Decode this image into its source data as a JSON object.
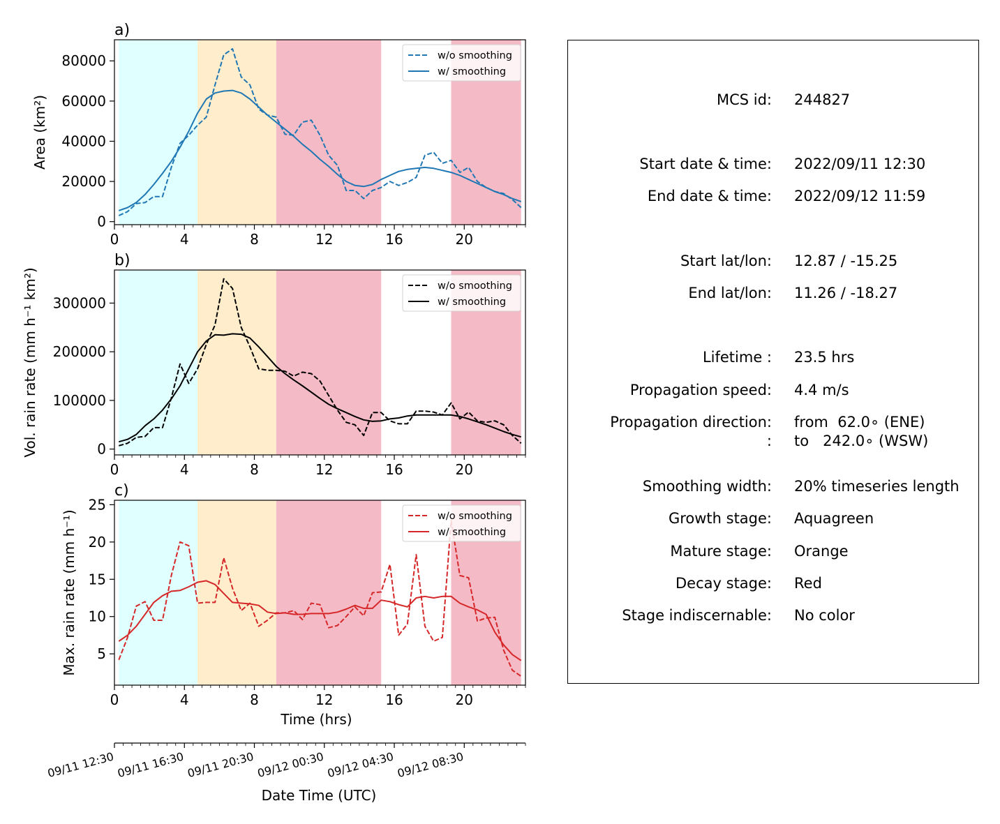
{
  "chart_data": [
    {
      "type": "line",
      "panel_label": "a)",
      "xlabel": "",
      "ylabel": "Area  (km²)",
      "xlim": [
        0,
        23.5
      ],
      "ylim": [
        -1500,
        90500
      ],
      "xticks": [
        0,
        4,
        8,
        12,
        16,
        20
      ],
      "yticks": [
        0,
        20000,
        40000,
        60000,
        80000
      ],
      "legend_position": "top-right",
      "series": [
        {
          "name": "w/o smoothing",
          "style": "dashed",
          "color": "#1f77b4",
          "x": [
            0.25,
            0.75,
            1.25,
            1.75,
            2.25,
            2.75,
            3.25,
            3.75,
            4.25,
            4.75,
            5.25,
            5.75,
            6.25,
            6.75,
            7.25,
            7.75,
            8.25,
            8.75,
            9.25,
            9.75,
            10.25,
            10.75,
            11.25,
            11.75,
            12.25,
            12.75,
            13.25,
            13.75,
            14.25,
            14.75,
            15.25,
            15.75,
            16.25,
            16.75,
            17.25,
            17.75,
            18.25,
            18.75,
            19.25,
            19.75,
            20.25,
            20.75,
            21.25,
            21.75,
            22.25,
            22.75,
            23.25
          ],
          "y": [
            3000,
            5000,
            9000,
            9500,
            12500,
            12500,
            27000,
            39000,
            43000,
            48000,
            52000,
            68000,
            83000,
            86000,
            72000,
            68000,
            56000,
            53000,
            52000,
            43500,
            43000,
            49500,
            50500,
            43000,
            33000,
            28000,
            15500,
            15500,
            11500,
            15500,
            17000,
            20000,
            18000,
            19500,
            22000,
            33000,
            34500,
            29000,
            30500,
            24500,
            27000,
            20000,
            17000,
            15000,
            14000,
            11000,
            7000
          ]
        },
        {
          "name": "w/ smoothing",
          "style": "solid",
          "color": "#1f77b4",
          "x": [
            0.25,
            0.75,
            1.25,
            1.75,
            2.25,
            2.75,
            3.25,
            3.75,
            4.25,
            4.75,
            5.25,
            5.75,
            6.25,
            6.75,
            7.25,
            7.75,
            8.25,
            8.75,
            9.25,
            9.75,
            10.25,
            10.75,
            11.25,
            11.75,
            12.25,
            12.75,
            13.25,
            13.75,
            14.25,
            14.75,
            15.25,
            15.75,
            16.25,
            16.75,
            17.25,
            17.75,
            18.25,
            18.75,
            19.25,
            19.75,
            20.25,
            20.75,
            21.25,
            21.75,
            22.25,
            22.75,
            23.25
          ],
          "y": [
            5500,
            7000,
            9500,
            13500,
            18500,
            24000,
            30000,
            37000,
            45000,
            54000,
            61000,
            64000,
            65000,
            65300,
            64000,
            61000,
            57000,
            53000,
            49500,
            46000,
            42500,
            38500,
            35000,
            31000,
            27500,
            23500,
            20000,
            18000,
            17500,
            18500,
            21000,
            23000,
            25000,
            26000,
            26500,
            27000,
            26500,
            25500,
            24500,
            23000,
            21000,
            19000,
            17000,
            15000,
            13500,
            11500,
            10000
          ]
        }
      ]
    },
    {
      "type": "line",
      "panel_label": "b)",
      "xlabel": "",
      "ylabel": "Vol. rain rate (mm h⁻¹ km²)",
      "xlim": [
        0,
        23.5
      ],
      "ylim": [
        -12000,
        368000
      ],
      "xticks": [
        0,
        4,
        8,
        12,
        16,
        20
      ],
      "yticks": [
        0,
        100000,
        200000,
        300000
      ],
      "legend_position": "top-right",
      "series": [
        {
          "name": "w/o smoothing",
          "style": "dashed",
          "color": "#000000",
          "x": [
            0.25,
            0.75,
            1.25,
            1.75,
            2.25,
            2.75,
            3.25,
            3.75,
            4.25,
            4.75,
            5.25,
            5.75,
            6.25,
            6.75,
            7.25,
            7.75,
            8.25,
            8.75,
            9.25,
            9.75,
            10.25,
            10.75,
            11.25,
            11.75,
            12.25,
            12.75,
            13.25,
            13.75,
            14.25,
            14.75,
            15.25,
            15.75,
            16.25,
            16.75,
            17.25,
            17.75,
            18.25,
            18.75,
            19.25,
            19.75,
            20.25,
            20.75,
            21.25,
            21.75,
            22.25,
            22.75,
            23.25
          ],
          "y": [
            7000,
            12000,
            24000,
            26000,
            44000,
            44000,
            105000,
            175000,
            135000,
            165000,
            215000,
            255000,
            350000,
            330000,
            250000,
            210000,
            165000,
            162000,
            162000,
            160000,
            150000,
            158000,
            155000,
            140000,
            110000,
            80000,
            55000,
            50000,
            28000,
            75000,
            75000,
            58000,
            52000,
            52000,
            78000,
            78000,
            76000,
            70000,
            95000,
            62000,
            76000,
            58000,
            55000,
            58000,
            50000,
            28000,
            12000
          ]
        },
        {
          "name": "w/ smoothing",
          "style": "solid",
          "color": "#000000",
          "x": [
            0.25,
            0.75,
            1.25,
            1.75,
            2.25,
            2.75,
            3.25,
            3.75,
            4.25,
            4.75,
            5.25,
            5.75,
            6.25,
            6.75,
            7.25,
            7.75,
            8.25,
            8.75,
            9.25,
            9.75,
            10.25,
            10.75,
            11.25,
            11.75,
            12.25,
            12.75,
            13.25,
            13.75,
            14.25,
            14.75,
            15.25,
            15.75,
            16.25,
            16.75,
            17.25,
            17.75,
            18.25,
            18.75,
            19.25,
            19.75,
            20.25,
            20.75,
            21.25,
            21.75,
            22.25,
            22.75,
            23.25
          ],
          "y": [
            15000,
            20000,
            30000,
            48000,
            62000,
            80000,
            103000,
            130000,
            165000,
            200000,
            222000,
            235000,
            234000,
            237000,
            236000,
            228000,
            210000,
            190000,
            170000,
            155000,
            142000,
            130000,
            117000,
            104000,
            92000,
            83000,
            75000,
            67000,
            60000,
            57000,
            58000,
            62000,
            64000,
            68000,
            70000,
            70000,
            70000,
            70000,
            70000,
            67000,
            62000,
            56000,
            50000,
            43000,
            36000,
            30000,
            25000
          ]
        }
      ]
    },
    {
      "type": "line",
      "panel_label": "c)",
      "xlabel": "Time (hrs)",
      "ylabel": "Max. rain rate  (mm h⁻¹)",
      "xlim": [
        0,
        23.5
      ],
      "ylim": [
        0.8,
        25.6
      ],
      "xticks": [
        0,
        4,
        8,
        12,
        16,
        20
      ],
      "yticks": [
        5,
        10,
        15,
        20,
        25
      ],
      "legend_position": "top-right",
      "series": [
        {
          "name": "w/o smoothing",
          "style": "dashed",
          "color": "#d62728",
          "x": [
            0.25,
            0.75,
            1.25,
            1.75,
            2.25,
            2.75,
            3.25,
            3.75,
            4.25,
            4.75,
            5.25,
            5.75,
            6.25,
            6.75,
            7.25,
            7.75,
            8.25,
            8.75,
            9.25,
            9.75,
            10.25,
            10.75,
            11.25,
            11.75,
            12.25,
            12.75,
            13.25,
            13.75,
            14.25,
            14.75,
            15.25,
            15.75,
            16.25,
            16.75,
            17.25,
            17.75,
            18.25,
            18.75,
            19.25,
            19.75,
            20.25,
            20.75,
            21.25,
            21.75,
            22.25,
            22.75,
            23.25
          ],
          "y": [
            4.2,
            7.2,
            11.4,
            12.0,
            9.5,
            9.5,
            15.5,
            20.0,
            19.5,
            11.8,
            11.9,
            11.9,
            17.9,
            13.8,
            10.8,
            11.8,
            8.7,
            9.5,
            10.5,
            10.5,
            10.8,
            9.6,
            11.8,
            11.6,
            8.5,
            8.8,
            10.0,
            11.3,
            10.1,
            13.2,
            13.3,
            17.0,
            7.5,
            9.0,
            18.3,
            8.7,
            6.7,
            7.2,
            22.9,
            15.5,
            15.2,
            9.4,
            9.8,
            9.9,
            5.5,
            2.8,
            2.0
          ]
        },
        {
          "name": "w/ smoothing",
          "style": "solid",
          "color": "#d62728",
          "x": [
            0.25,
            0.75,
            1.25,
            1.75,
            2.25,
            2.75,
            3.25,
            3.75,
            4.25,
            4.75,
            5.25,
            5.75,
            6.25,
            6.75,
            7.25,
            7.75,
            8.25,
            8.75,
            9.25,
            9.75,
            10.25,
            10.75,
            11.25,
            11.75,
            12.25,
            12.75,
            13.25,
            13.75,
            14.25,
            14.75,
            15.25,
            15.75,
            16.25,
            16.75,
            17.25,
            17.75,
            18.25,
            18.75,
            19.25,
            19.75,
            20.25,
            20.75,
            21.25,
            21.75,
            22.25,
            22.75,
            23.25
          ],
          "y": [
            6.7,
            7.5,
            8.7,
            10.3,
            11.9,
            12.8,
            13.4,
            13.5,
            14.0,
            14.6,
            14.8,
            14.3,
            13.1,
            11.9,
            11.8,
            11.7,
            11.5,
            10.6,
            10.4,
            10.5,
            10.3,
            10.3,
            10.4,
            10.4,
            10.4,
            10.6,
            11.0,
            11.5,
            11.1,
            11.1,
            12.2,
            12.0,
            11.6,
            11.3,
            12.5,
            12.7,
            12.5,
            12.7,
            12.7,
            11.8,
            11.3,
            10.9,
            10.3,
            7.9,
            6.2,
            4.9,
            4.1
          ]
        }
      ]
    }
  ],
  "stages": [
    {
      "name": "Growth",
      "start": 0.25,
      "end": 4.75,
      "color": "#e0ffff"
    },
    {
      "name": "Mature",
      "start": 4.75,
      "end": 9.25,
      "color": "#ffedcc"
    },
    {
      "name": "Decay",
      "start": 9.25,
      "end": 15.25,
      "color": "#f4bac6"
    },
    {
      "name": "Decay",
      "start": 19.25,
      "end": 23.25,
      "color": "#f4bac6"
    }
  ],
  "date_axis": {
    "title": "Date Time (UTC)",
    "ticks": [
      {
        "x": 0,
        "label": "09/11 12:30"
      },
      {
        "x": 4,
        "label": "09/11 16:30"
      },
      {
        "x": 8,
        "label": "09/11 20:30"
      },
      {
        "x": 12,
        "label": "09/12 00:30"
      },
      {
        "x": 16,
        "label": "09/12 04:30"
      },
      {
        "x": 20,
        "label": "09/12 08:30"
      }
    ]
  },
  "info": [
    {
      "label": "MCS id:",
      "value": "244827"
    },
    {
      "label": "Start date & time:",
      "value": "2022/09/11 12:30"
    },
    {
      "label": "End date & time:",
      "value": "2022/09/12 11:59"
    },
    {
      "label": "Start lat/lon:",
      "value": "12.87 / -15.25"
    },
    {
      "label": "End lat/lon:",
      "value": "11.26 / -18.27"
    },
    {
      "label": "Lifetime :",
      "value": "23.5 hrs"
    },
    {
      "label": "Propagation speed:",
      "value": "4.4 m/s"
    },
    {
      "label": "Propagation direction:",
      "value": "from  62.0∘ (ENE)"
    },
    {
      "label": ":",
      "value": "to   242.0∘ (WSW)"
    },
    {
      "label": "Smoothing width:",
      "value": "20% timeseries length"
    },
    {
      "label": "Growth stage:",
      "value": "Aquagreen"
    },
    {
      "label": "Mature stage:",
      "value": "Orange"
    },
    {
      "label": "Decay stage:",
      "value": "Red"
    },
    {
      "label": "Stage indiscernable:",
      "value": "No color"
    }
  ]
}
